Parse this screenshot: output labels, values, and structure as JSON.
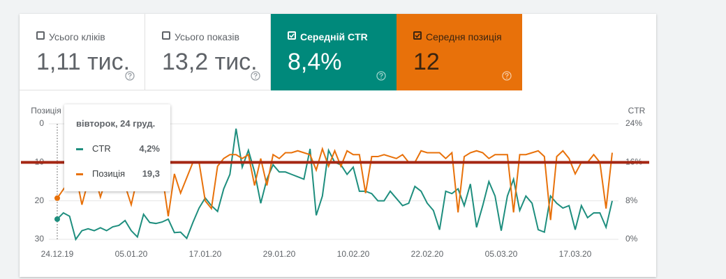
{
  "cards": [
    {
      "label": "Усього кліків",
      "value": "1,11 тис.",
      "checked": false,
      "color": null
    },
    {
      "label": "Усього показів",
      "value": "13,2 тис.",
      "checked": false,
      "color": null
    },
    {
      "label": "Середній CTR",
      "value": "8,4%",
      "checked": true,
      "color": "#00897b"
    },
    {
      "label": "Середня позиція",
      "value": "12",
      "checked": true,
      "color": "#e8710a"
    }
  ],
  "tooltip": {
    "index": 0,
    "title": "вівторок, 24 груд.",
    "rows": [
      {
        "name": "CTR",
        "value": "4,2%",
        "color": "#1e8e7e"
      },
      {
        "name": "Позиція",
        "value": "19,3",
        "color": "#e8710a"
      }
    ]
  },
  "chart_data": {
    "type": "line",
    "ylabel": "Позиція",
    "y2label": "CTR",
    "categories": [
      "24.12.19",
      null,
      null,
      null,
      null,
      null,
      null,
      null,
      null,
      null,
      null,
      null,
      "05.01.20",
      null,
      null,
      null,
      null,
      null,
      null,
      null,
      null,
      null,
      null,
      null,
      "17.01.20",
      null,
      null,
      null,
      null,
      null,
      null,
      null,
      null,
      null,
      null,
      null,
      "29.01.20",
      null,
      null,
      null,
      null,
      null,
      null,
      null,
      null,
      null,
      null,
      null,
      "10.02.20",
      null,
      null,
      null,
      null,
      null,
      null,
      null,
      null,
      null,
      null,
      null,
      "22.02.20",
      null,
      null,
      null,
      null,
      null,
      null,
      null,
      null,
      null,
      null,
      null,
      "05.03.20",
      null,
      null,
      null,
      null,
      null,
      null,
      null,
      null,
      null,
      null,
      null,
      "17.03.20",
      null,
      null,
      null,
      null,
      null,
      null
    ],
    "ylim": [
      0,
      30
    ],
    "y_inverted": true,
    "yticks": [
      0,
      10,
      20,
      30
    ],
    "y2lim": [
      0,
      24
    ],
    "y2ticks": [
      {
        "value": 0,
        "label": "0%"
      },
      {
        "value": 8,
        "label": "8%"
      },
      {
        "value": 16,
        "label": "16%"
      },
      {
        "value": 24,
        "label": "24%"
      }
    ],
    "grid": true,
    "reference_line": {
      "value": 10,
      "axis": "y",
      "color": "#a52714"
    },
    "series": [
      {
        "name": "CTR",
        "color": "#1e8e7e",
        "axis": "y2",
        "values": [
          4.2,
          5.5,
          4.8,
          0,
          1.8,
          2.2,
          1.8,
          2.4,
          1.8,
          2.6,
          2.9,
          3.9,
          1.8,
          0.5,
          5.2,
          3.5,
          3.3,
          3.6,
          4.2,
          1.4,
          1.5,
          0.2,
          3.5,
          6.5,
          8.6,
          7,
          5.8,
          10.5,
          13.5,
          23,
          15,
          18.5,
          14,
          7.5,
          12.5,
          15.5,
          14,
          14,
          13.5,
          13,
          12.5,
          18.8,
          5,
          9,
          18.5,
          16,
          15.5,
          13.5,
          15,
          10,
          10,
          9.5,
          8,
          8,
          10,
          8.5,
          7,
          7.5,
          11,
          10,
          7.5,
          6,
          2,
          10,
          9.5,
          10.5,
          7,
          11.5,
          2.5,
          7,
          12,
          9,
          1.8,
          9,
          12.5,
          6,
          9,
          7.5,
          2,
          1.5,
          9,
          7.5,
          6.5,
          7,
          2,
          7,
          4.5,
          5.5,
          5.5,
          2.5,
          8
        ]
      },
      {
        "name": "Позиція",
        "color": "#e8710a",
        "axis": "y",
        "values": [
          19.3,
          17,
          15,
          13,
          21,
          15,
          13,
          19,
          14,
          12,
          14,
          16,
          21,
          14,
          11,
          13,
          10,
          13,
          24,
          13,
          18,
          14,
          10,
          10,
          20,
          22,
          11,
          9,
          8,
          8,
          9,
          8,
          16,
          9,
          16,
          8,
          9,
          7.5,
          7.5,
          7,
          7.5,
          8,
          12,
          6.5,
          11,
          7,
          11,
          7,
          8,
          8,
          18,
          8.5,
          8.5,
          8,
          8.5,
          9,
          8,
          10,
          10,
          7,
          7.5,
          7.5,
          7.5,
          9,
          7.5,
          23,
          8.5,
          7.5,
          7,
          7.5,
          9,
          8,
          8,
          8,
          23,
          8,
          8,
          7.5,
          7,
          8.5,
          25,
          8.5,
          7,
          9,
          13,
          10,
          10,
          8,
          10,
          22,
          7.5
        ]
      }
    ]
  }
}
